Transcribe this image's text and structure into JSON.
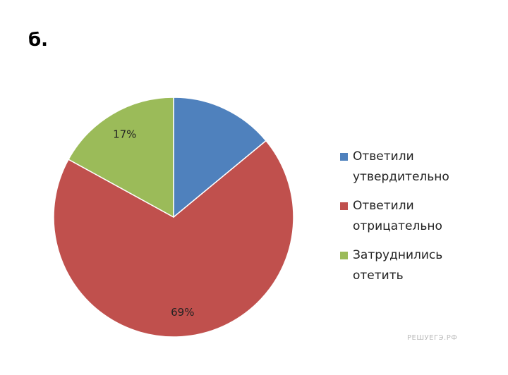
{
  "heading": "б.",
  "chart_data": {
    "type": "pie",
    "categories": [
      "Ответили утвердительно",
      "Ответили отрицательно",
      "Затруднились отетить"
    ],
    "values": [
      14,
      69,
      17
    ],
    "value_labels": [
      null,
      "69%",
      "17%"
    ],
    "colors": [
      "#4f81bd",
      "#c0504d",
      "#9bbb59"
    ],
    "legend": "right"
  },
  "watermark": "РЕШУЕГЭ.РФ"
}
